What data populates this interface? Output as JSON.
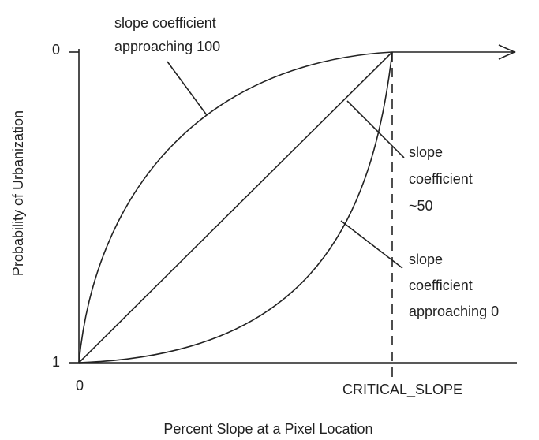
{
  "labels": {
    "y_axis_title": "Probability of Urbanization",
    "x_axis_title": "Percent Slope at a Pixel Location",
    "y_tick_top": "0",
    "y_tick_bottom": "1",
    "x_tick_left": "0",
    "x_tick_right": "CRITICAL_SLOPE",
    "curve_100": [
      "slope coefficient",
      "approaching 100"
    ],
    "curve_50": [
      "slope",
      "coefficient",
      "~50"
    ],
    "curve_0": [
      "slope",
      "coefficient",
      "approaching 0"
    ]
  }
}
